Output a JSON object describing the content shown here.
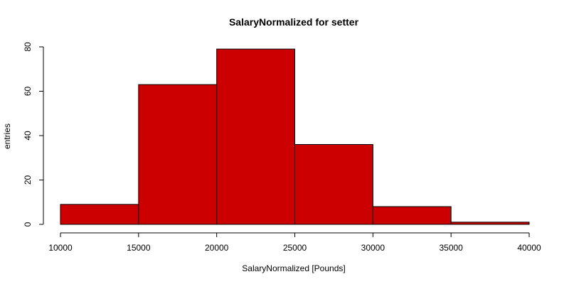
{
  "chart_data": {
    "type": "bar",
    "title": "SalaryNormalized for setter",
    "xlabel": "SalaryNormalized [Pounds]",
    "ylabel": "entries",
    "bins": [
      {
        "start": 10000,
        "end": 15000,
        "value": 9
      },
      {
        "start": 15000,
        "end": 20000,
        "value": 63
      },
      {
        "start": 20000,
        "end": 25000,
        "value": 79
      },
      {
        "start": 25000,
        "end": 30000,
        "value": 36
      },
      {
        "start": 30000,
        "end": 35000,
        "value": 8
      },
      {
        "start": 35000,
        "end": 40000,
        "value": 1
      }
    ],
    "xlim": [
      10000,
      40000
    ],
    "ylim": [
      0,
      80
    ],
    "x_ticks": [
      10000,
      15000,
      20000,
      25000,
      30000,
      35000,
      40000
    ],
    "y_ticks": [
      0,
      20,
      40,
      60,
      80
    ],
    "bar_color": "#cc0000",
    "grid": false
  }
}
